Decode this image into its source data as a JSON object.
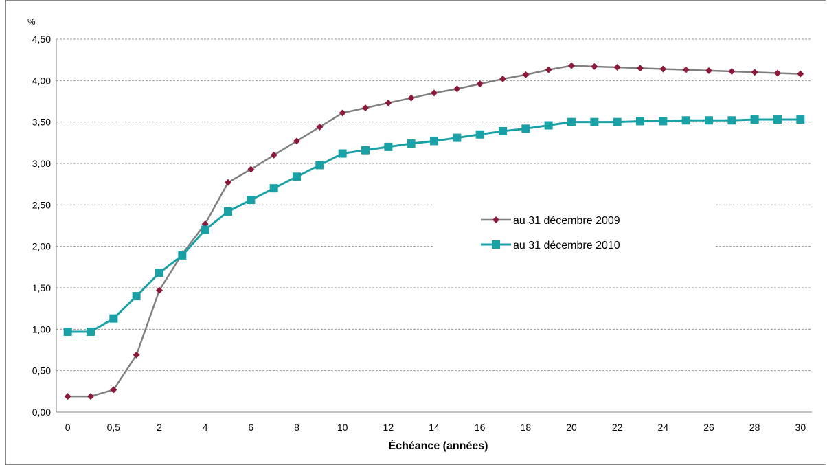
{
  "chart_data": {
    "type": "line",
    "ylabel": "%",
    "xlabel": "Échéance (années)",
    "ylim": [
      0,
      4.5
    ],
    "y_ticks": [
      "0,00",
      "0,50",
      "1,00",
      "1,50",
      "2,00",
      "2,50",
      "3,00",
      "3,50",
      "4,00",
      "4,50"
    ],
    "x_tick_labels": [
      "0",
      "0,5",
      "2",
      "4",
      "6",
      "8",
      "10",
      "12",
      "14",
      "16",
      "18",
      "20",
      "22",
      "24",
      "26",
      "28",
      "30"
    ],
    "x": [
      "0",
      "0,25",
      "0,5",
      "1",
      "2",
      "3",
      "4",
      "5",
      "6",
      "7",
      "8",
      "9",
      "10",
      "11",
      "12",
      "13",
      "14",
      "15",
      "16",
      "17",
      "18",
      "19",
      "20",
      "21",
      "22",
      "23",
      "24",
      "25",
      "26",
      "27",
      "28",
      "29",
      "30"
    ],
    "series": [
      {
        "name": "au 31 décembre 2009",
        "color": "#7f7f7f",
        "marker_color": "#8b1a3a",
        "marker": "diamond",
        "values": [
          0.19,
          0.19,
          0.27,
          0.69,
          1.47,
          1.91,
          2.27,
          2.77,
          2.93,
          3.1,
          3.27,
          3.44,
          3.61,
          3.67,
          3.73,
          3.79,
          3.85,
          3.9,
          3.96,
          4.02,
          4.07,
          4.13,
          4.18,
          4.17,
          4.16,
          4.15,
          4.14,
          4.13,
          4.12,
          4.11,
          4.1,
          4.09,
          4.08
        ]
      },
      {
        "name": "au 31 décembre 2010",
        "color": "#1aa1a6",
        "marker_color": "#1aa1a6",
        "marker": "square",
        "values": [
          0.97,
          0.97,
          1.13,
          1.4,
          1.68,
          1.89,
          2.2,
          2.42,
          2.56,
          2.7,
          2.84,
          2.98,
          3.12,
          3.16,
          3.2,
          3.24,
          3.27,
          3.31,
          3.35,
          3.39,
          3.42,
          3.46,
          3.5,
          3.5,
          3.5,
          3.51,
          3.51,
          3.52,
          3.52,
          3.52,
          3.53,
          3.53,
          3.53
        ]
      }
    ],
    "legend_position": "center-right",
    "grid": true
  }
}
